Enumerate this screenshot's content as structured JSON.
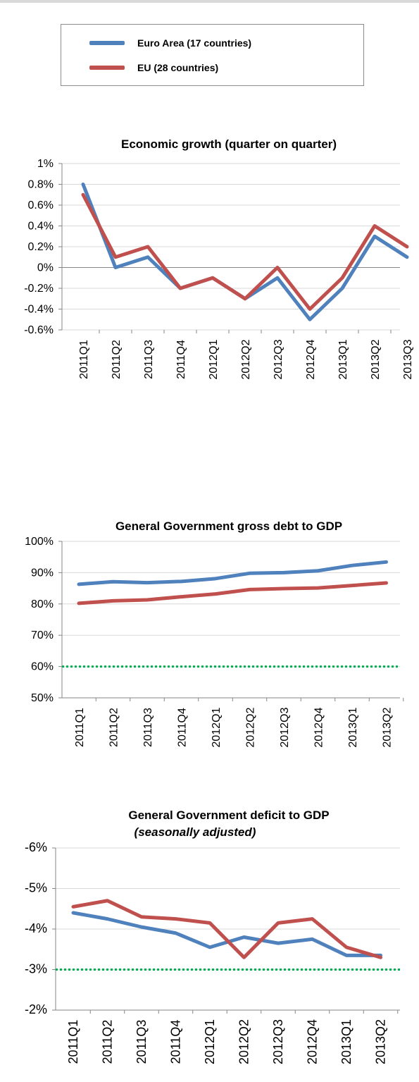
{
  "legend": {
    "items": [
      {
        "label": "Euro Area (17 countries)",
        "color": "#4f81bd"
      },
      {
        "label": "EU (28 countries)",
        "color": "#c0504d"
      }
    ]
  },
  "chart_data": [
    {
      "type": "line",
      "title": "Economic growth (quarter on quarter)",
      "subtitle": "",
      "categories": [
        "2011Q1",
        "2011Q2",
        "2011Q3",
        "2011Q4",
        "2012Q1",
        "2012Q2",
        "2012Q3",
        "2012Q4",
        "2013Q1",
        "2013Q2",
        "2013Q3"
      ],
      "ylim": [
        -0.6,
        1
      ],
      "yticks": [
        1,
        0.8,
        0.6,
        0.4,
        0.2,
        0,
        -0.2,
        -0.4,
        -0.6
      ],
      "ytick_labels": [
        "1%",
        "0.8%",
        "0.6%",
        "0.4%",
        "0.2%",
        "0%",
        "-0.2%",
        "-0.4%",
        "-0.6%"
      ],
      "zero_line": true,
      "grid": true,
      "series": [
        {
          "name": "Euro Area (17 countries)",
          "color": "#4f81bd",
          "values": [
            0.8,
            0.0,
            0.1,
            -0.2,
            -0.1,
            -0.3,
            -0.1,
            -0.5,
            -0.2,
            0.3,
            0.1
          ]
        },
        {
          "name": "EU (28 countries)",
          "color": "#c0504d",
          "values": [
            0.7,
            0.1,
            0.2,
            -0.2,
            -0.1,
            -0.3,
            0.0,
            -0.4,
            -0.1,
            0.4,
            0.2
          ]
        }
      ]
    },
    {
      "type": "line",
      "title": "General Government gross debt to  GDP",
      "subtitle": "",
      "categories": [
        "2011Q1",
        "2011Q2",
        "2011Q3",
        "2011Q4",
        "2012Q1",
        "2012Q2",
        "2012Q3",
        "2012Q4",
        "2013Q1",
        "2013Q2"
      ],
      "ylim": [
        50,
        100
      ],
      "yticks": [
        100,
        90,
        80,
        70,
        60,
        50
      ],
      "ytick_labels": [
        "100%",
        "90%",
        "80%",
        "70%",
        "60%",
        "50%"
      ],
      "reference_line": {
        "value": 60,
        "color": "#00b050"
      },
      "grid": true,
      "series": [
        {
          "name": "Euro Area (17 countries)",
          "color": "#4f81bd",
          "values": [
            86.3,
            87.1,
            86.8,
            87.2,
            88.1,
            89.8,
            90.0,
            90.6,
            92.3,
            93.4
          ]
        },
        {
          "name": "EU (28 countries)",
          "color": "#c0504d",
          "values": [
            80.2,
            81.0,
            81.3,
            82.3,
            83.2,
            84.6,
            84.9,
            85.1,
            85.9,
            86.7
          ]
        }
      ]
    },
    {
      "type": "line",
      "title": "General Government deficit to GDP",
      "subtitle": "(seasonally adjusted)",
      "categories": [
        "2011Q1",
        "2011Q2",
        "2011Q3",
        "2011Q4",
        "2012Q1",
        "2012Q2",
        "2012Q3",
        "2012Q4",
        "2013Q1",
        "2013Q2"
      ],
      "ylim": [
        -6,
        -2
      ],
      "yticks": [
        -6,
        -5,
        -4,
        -3,
        -2
      ],
      "ytick_labels": [
        "-6%",
        "-5%",
        "-4%",
        "-3%",
        "-2%"
      ],
      "reversed": true,
      "reference_line": {
        "value": -3,
        "color": "#00b050"
      },
      "grid": true,
      "series": [
        {
          "name": "Euro Area (17 countries)",
          "color": "#4f81bd",
          "values": [
            -4.4,
            -4.25,
            -4.05,
            -3.9,
            -3.55,
            -3.8,
            -3.65,
            -3.75,
            -3.35,
            -3.35
          ]
        },
        {
          "name": "EU (28 countries)",
          "color": "#c0504d",
          "values": [
            -4.55,
            -4.7,
            -4.3,
            -4.25,
            -4.15,
            -3.3,
            -4.15,
            -4.25,
            -3.55,
            -3.3
          ]
        }
      ]
    }
  ]
}
